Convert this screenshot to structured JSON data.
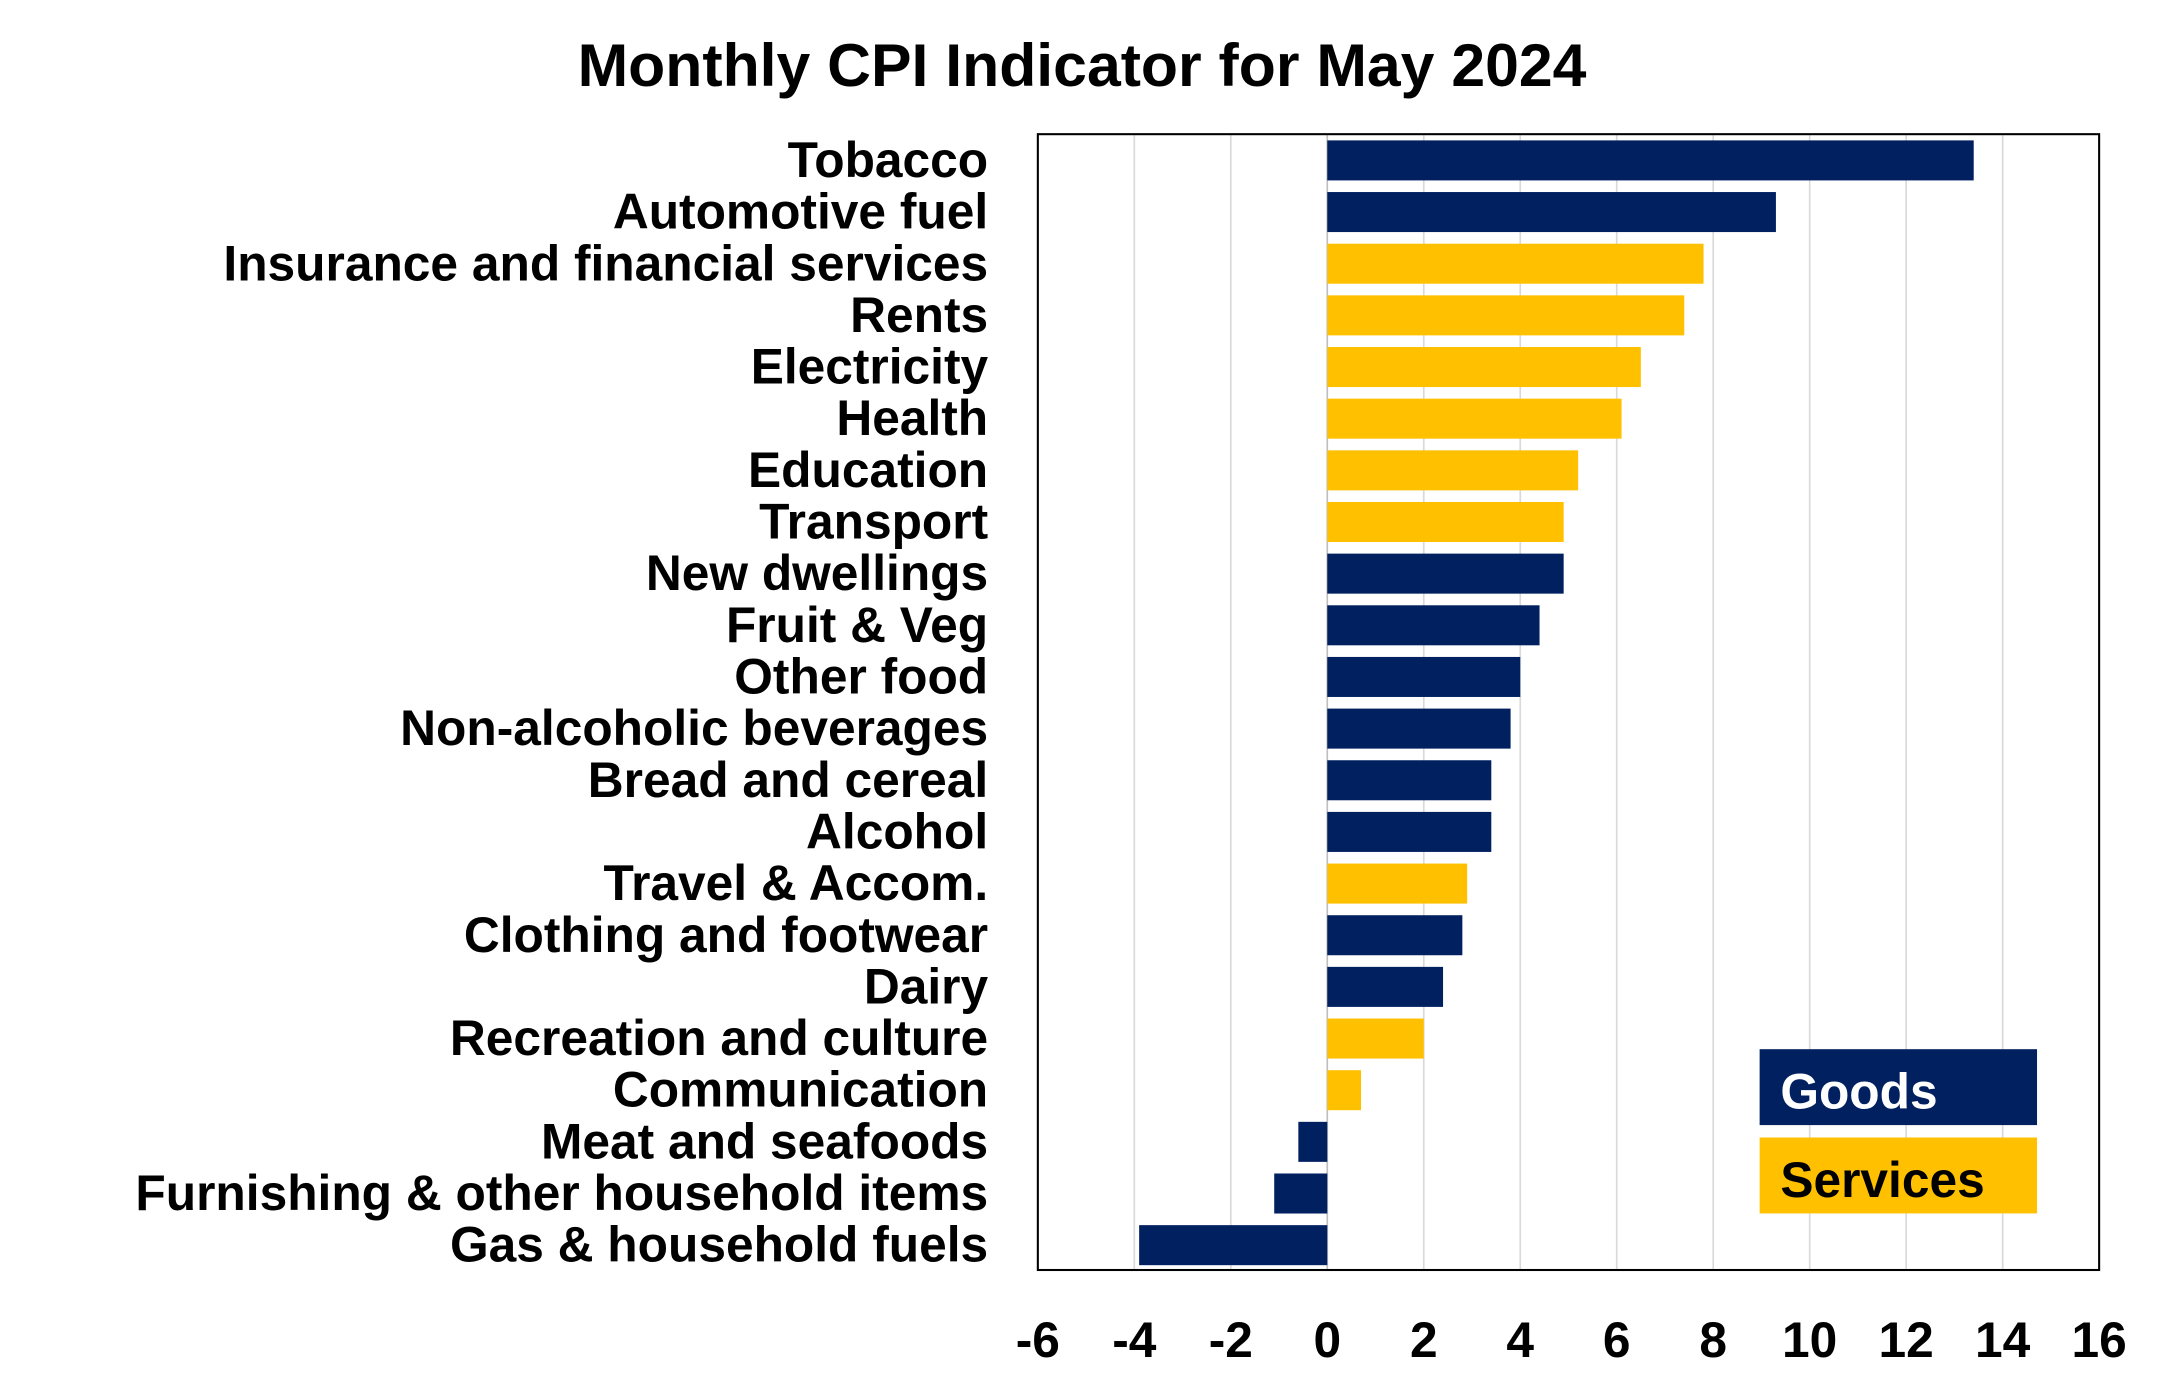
{
  "chart_data": {
    "type": "bar",
    "orientation": "horizontal",
    "title": "Monthly CPI Indicator for May 2024",
    "xlabel": "",
    "ylabel": "",
    "xlim": [
      -6,
      16
    ],
    "xticks": [
      -6,
      -4,
      -2,
      0,
      2,
      4,
      6,
      8,
      10,
      12,
      14,
      16
    ],
    "grid": true,
    "legend_position": "bottom-right",
    "legend": [
      {
        "name": "Goods",
        "color": "#002060"
      },
      {
        "name": "Services",
        "color": "#FFC000"
      }
    ],
    "categories": [
      "Tobacco",
      "Automotive fuel",
      "Insurance and financial services",
      "Rents",
      "Electricity",
      "Health",
      "Education",
      "Transport",
      "New dwellings",
      "Fruit & Veg",
      "Other food",
      "Non-alcoholic beverages",
      "Bread and cereal",
      "Alcohol",
      "Travel & Accom.",
      "Clothing and footwear",
      "Dairy",
      "Recreation and culture",
      "Communication",
      "Meat and seafoods",
      "Furnishing & other household items",
      "Gas & household fuels"
    ],
    "values": [
      13.4,
      9.3,
      7.8,
      7.4,
      6.5,
      6.1,
      5.2,
      4.9,
      4.9,
      4.4,
      4.0,
      3.8,
      3.4,
      3.4,
      2.9,
      2.8,
      2.4,
      2.0,
      0.7,
      -0.6,
      -1.1,
      -3.9
    ],
    "groups": [
      "Goods",
      "Goods",
      "Services",
      "Services",
      "Services",
      "Services",
      "Services",
      "Services",
      "Goods",
      "Goods",
      "Goods",
      "Goods",
      "Goods",
      "Goods",
      "Services",
      "Goods",
      "Goods",
      "Services",
      "Services",
      "Goods",
      "Goods",
      "Goods"
    ]
  }
}
